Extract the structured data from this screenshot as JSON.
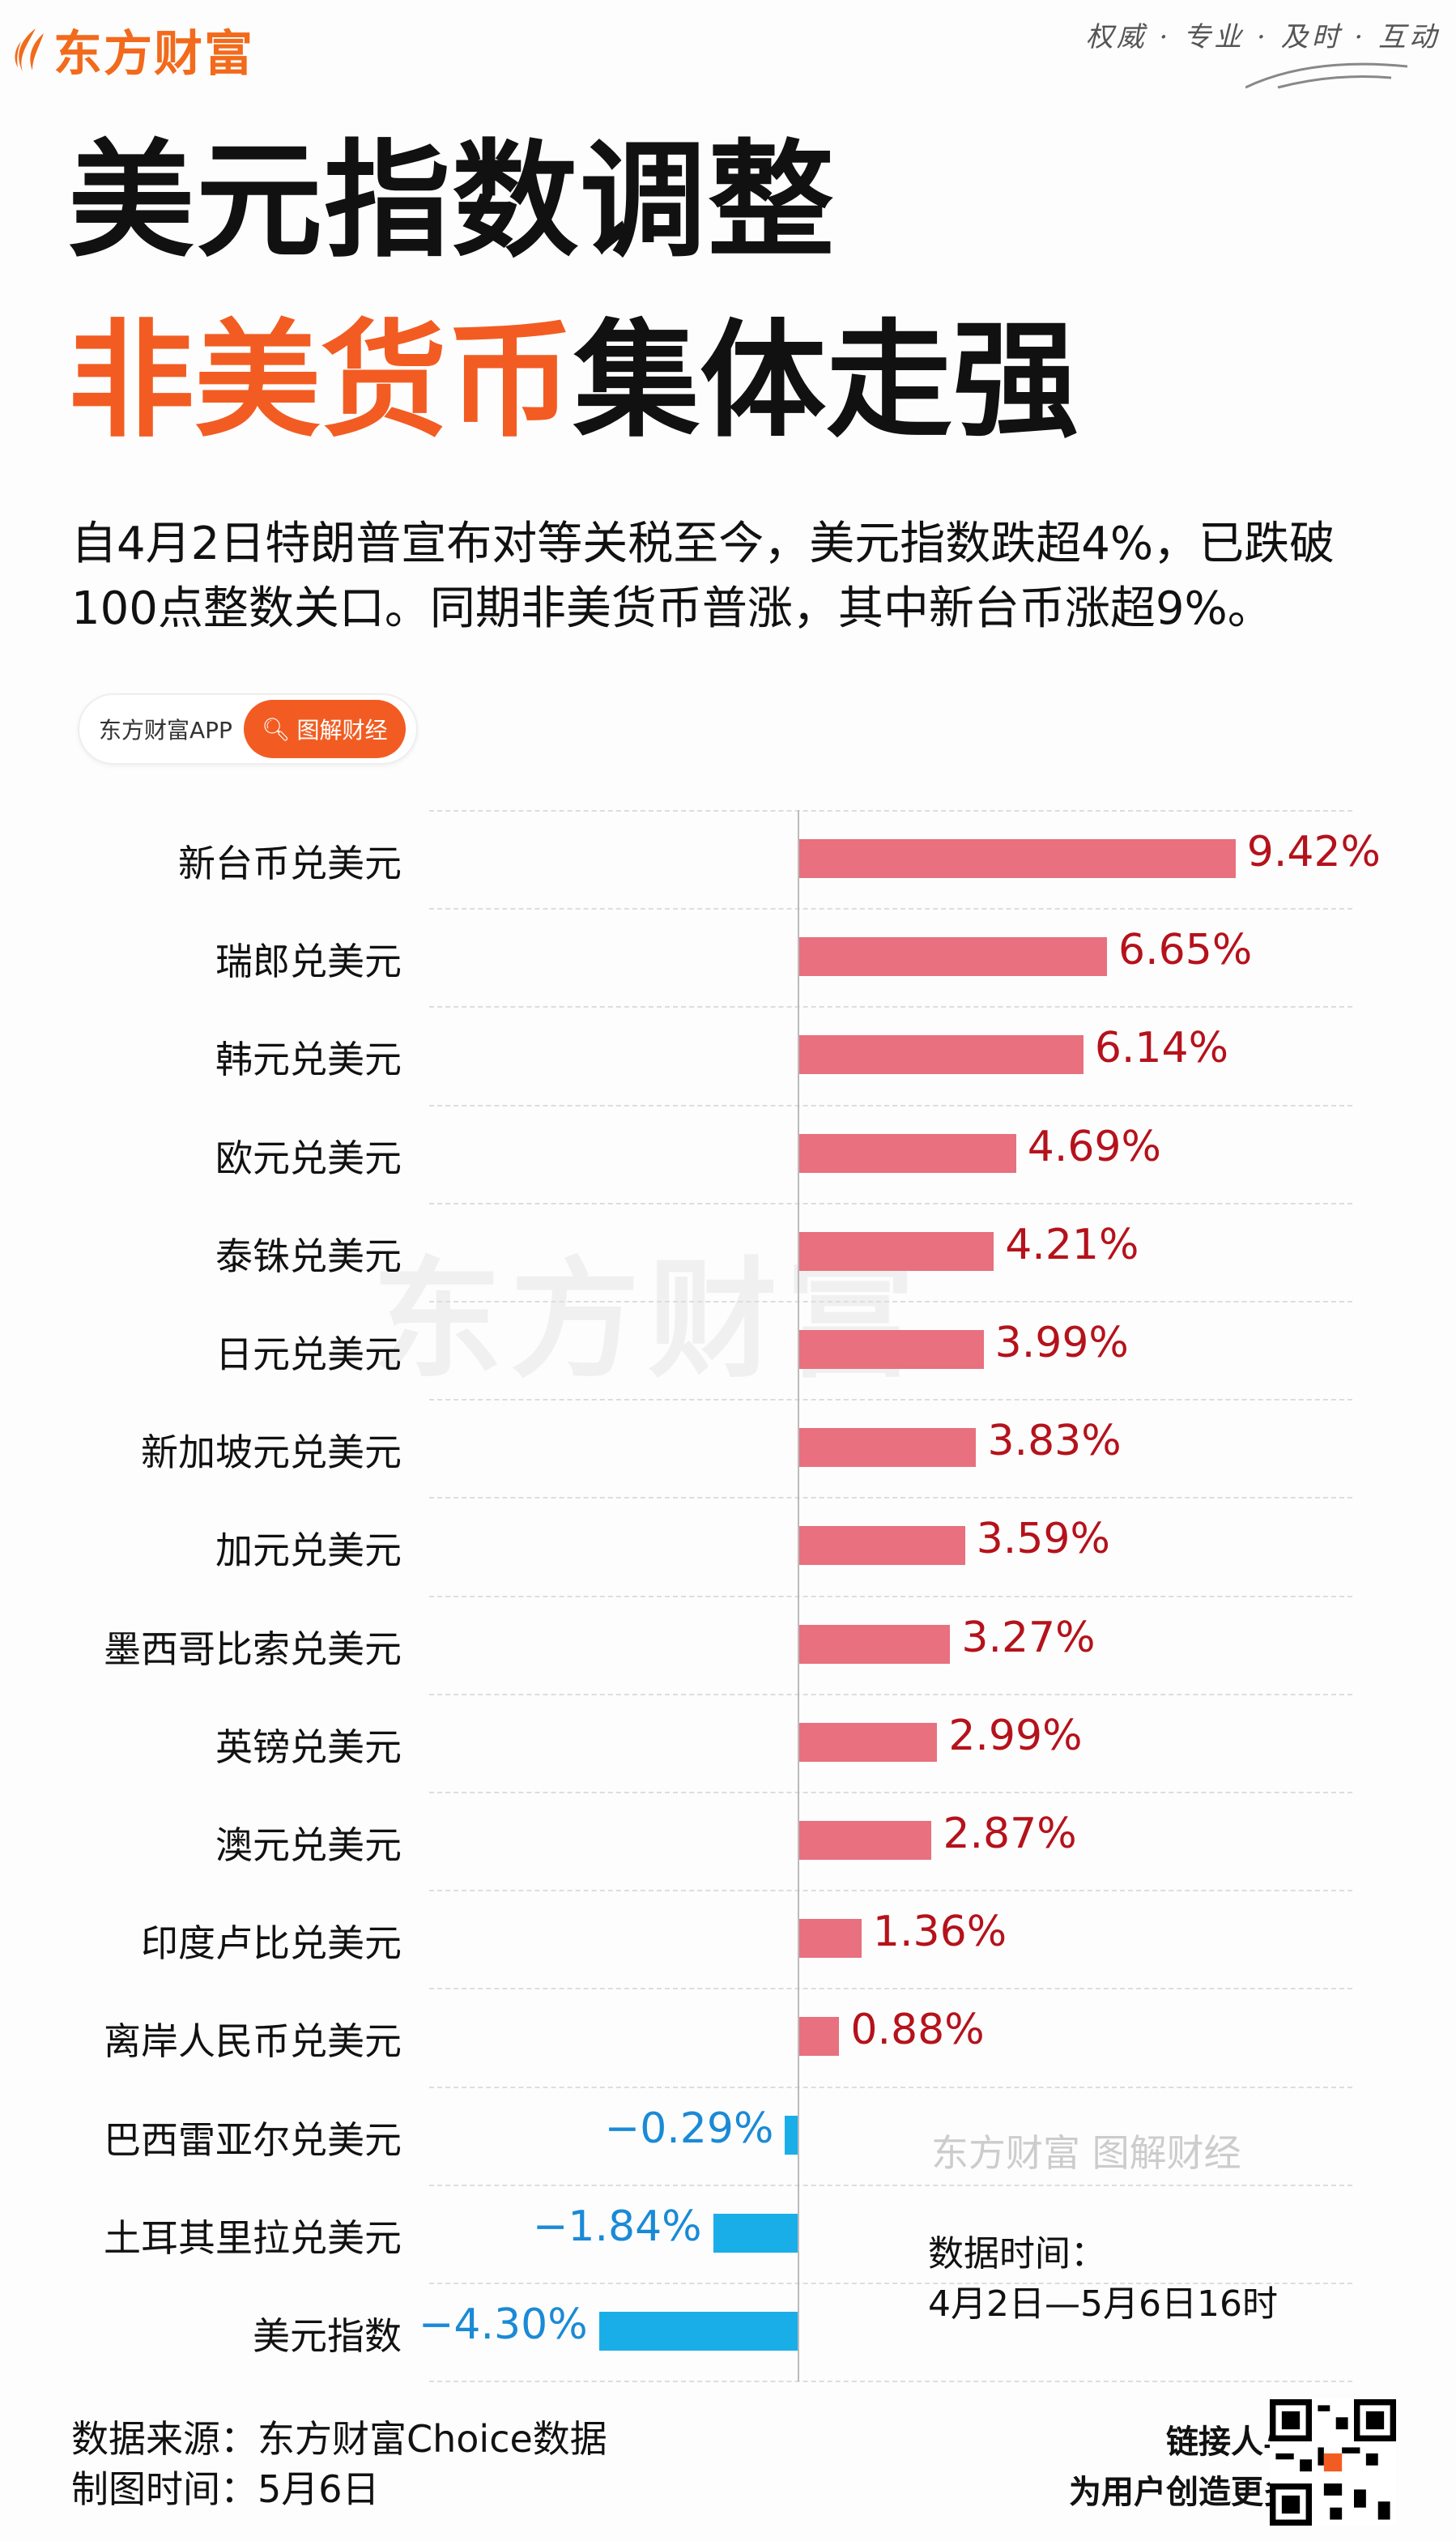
{
  "brand": {
    "name": "东方财富",
    "slogan": "权威 · 专业 · 及时 · 互动"
  },
  "title": {
    "line1": "美元指数调整",
    "line2_orange": "非美货币",
    "line2_black": "集体走强"
  },
  "subtitle": "自4月2日特朗普宣布对等关税至今，美元指数跌超4%，已跌破100点整数关口。同期非美货币普涨，其中新台币涨超9%。",
  "pill": {
    "app": "东方财富APP",
    "search": "图解财经"
  },
  "colors": {
    "positive_bar": "#e8707f",
    "positive_text": "#b5121b",
    "negative_bar": "#1aaee8",
    "negative_text": "#1a8ad6",
    "brand": "#f25c22"
  },
  "chart_data": {
    "type": "bar",
    "orientation": "horizontal",
    "unit": "%",
    "categories": [
      "新台币兑美元",
      "瑞郎兑美元",
      "韩元兑美元",
      "欧元兑美元",
      "泰铢兑美元",
      "日元兑美元",
      "新加坡元兑美元",
      "加元兑美元",
      "墨西哥比索兑美元",
      "英镑兑美元",
      "澳元兑美元",
      "印度卢比兑美元",
      "离岸人民币兑美元",
      "巴西雷亚尔兑美元",
      "土耳其里拉兑美元",
      "美元指数"
    ],
    "values": [
      9.42,
      6.65,
      6.14,
      4.69,
      4.21,
      3.99,
      3.83,
      3.59,
      3.27,
      2.99,
      2.87,
      1.36,
      0.88,
      -0.29,
      -1.84,
      -4.3
    ],
    "labels": [
      "9.42%",
      "6.65%",
      "6.14%",
      "4.69%",
      "4.21%",
      "3.99%",
      "3.83%",
      "3.59%",
      "3.27%",
      "2.99%",
      "2.87%",
      "1.36%",
      "0.88%",
      "−0.29%",
      "−1.84%",
      "−4.30%"
    ]
  },
  "watermark": {
    "main": "东方财富",
    "sub": "东方财富 图解财经"
  },
  "data_time": {
    "label": "数据时间：",
    "value": "4月2日—5月6日16时"
  },
  "footer": {
    "source": "数据来源：东方财富Choice数据",
    "made": "制图时间：5月6日",
    "tag1": "链接人与财富",
    "tag2": "为用户创造更多价值"
  }
}
